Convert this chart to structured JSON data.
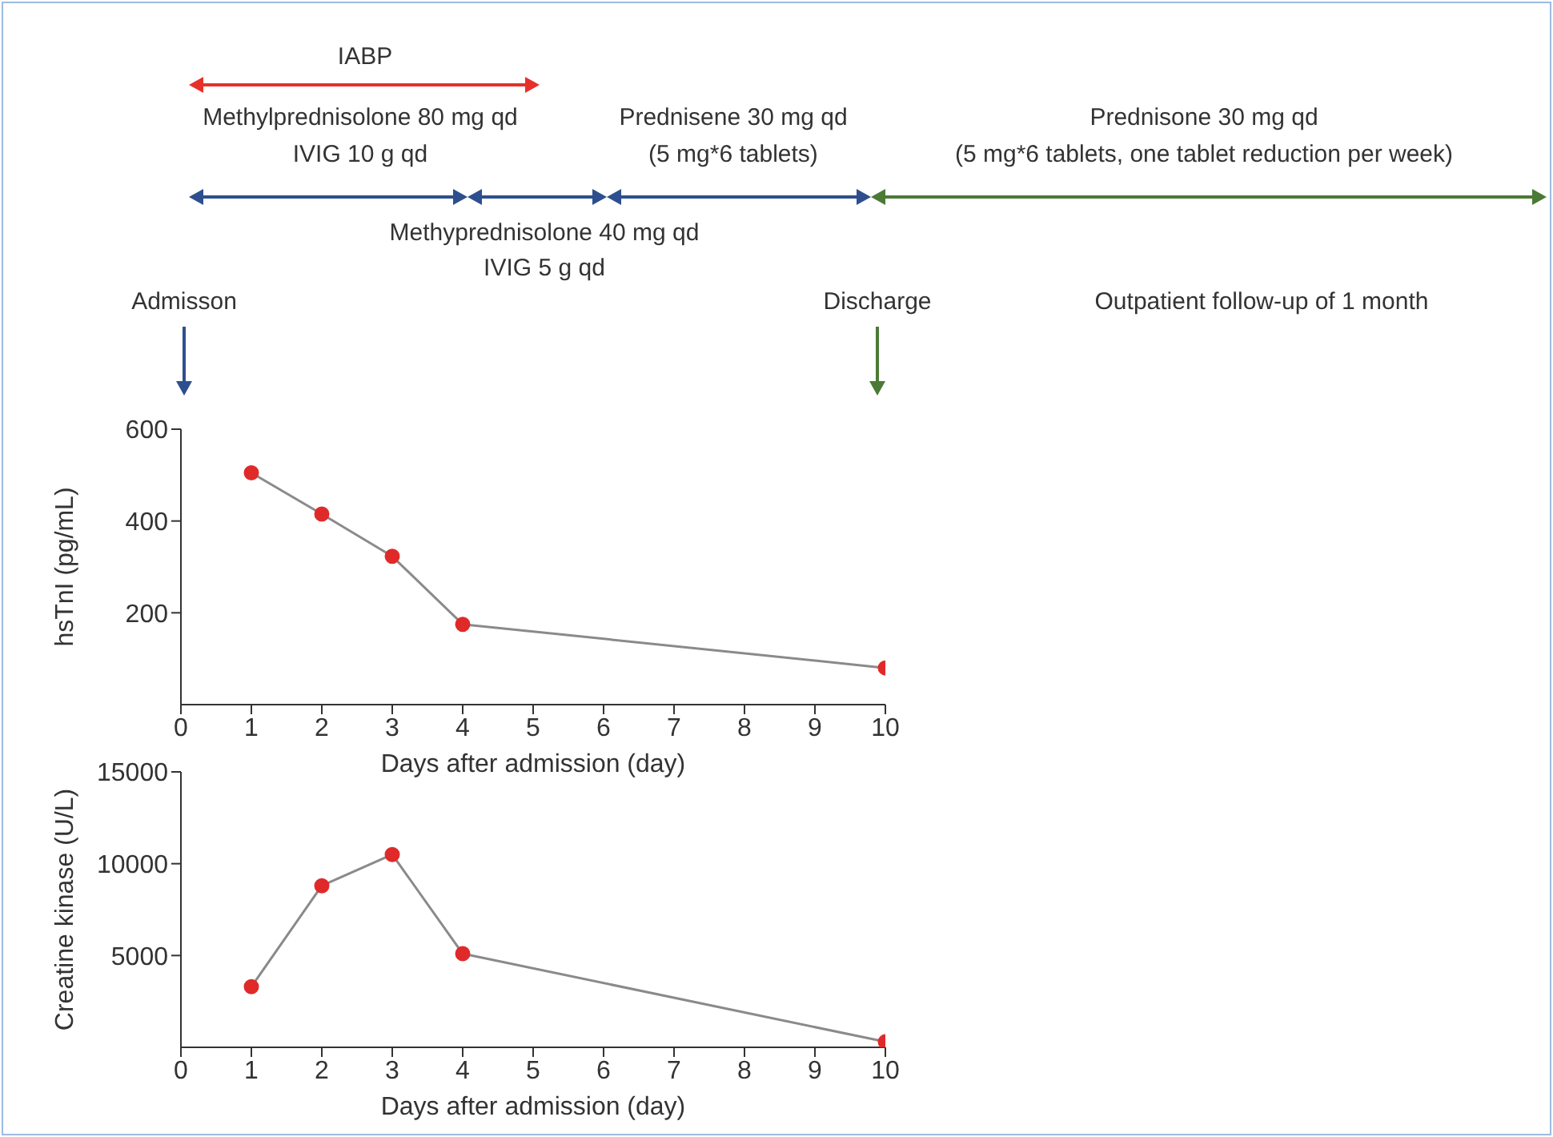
{
  "chart_data": [
    {
      "type": "other",
      "annotations": [
        "IABP",
        "Methylprednisolone 80 mg qd",
        "IVIG 10 g qd",
        "Prednisene 30 mg qd",
        "(5 mg*6 tablets)",
        "Prednisone 30 mg qd",
        "(5 mg*6 tablets, one tablet reduction per week)",
        "Methyprednisolone 40 mg qd",
        "IVIG 5 g qd",
        "Admisson",
        "Discharge",
        "Outpatient follow-up of 1 month"
      ]
    },
    {
      "type": "line",
      "xlabel": "Days after admission (day)",
      "ylabel": "hsTnI (pg/mL)",
      "x": [
        1,
        2,
        3,
        4,
        10
      ],
      "xlim": [
        0,
        10
      ],
      "xticks": [
        0,
        1,
        2,
        3,
        4,
        5,
        6,
        7,
        8,
        9,
        10
      ],
      "ylim": [
        0,
        600
      ],
      "yticks": [
        200,
        400,
        600
      ],
      "grid": false,
      "marker": "circle",
      "series": [
        {
          "color": "#e02a2a",
          "values": [
            505,
            415,
            323,
            175,
            80
          ]
        }
      ]
    },
    {
      "type": "line",
      "xlabel": "Days after admission (day)",
      "ylabel": "Creatine kinase (U/L)",
      "x": [
        1,
        2,
        3,
        4,
        10
      ],
      "xlim": [
        0,
        10
      ],
      "xticks": [
        0,
        1,
        2,
        3,
        4,
        5,
        6,
        7,
        8,
        9,
        10
      ],
      "ylim": [
        0,
        15000
      ],
      "yticks": [
        5000,
        10000,
        15000
      ],
      "grid": false,
      "marker": "circle",
      "series": [
        {
          "color": "#e02a2a",
          "values": [
            3300,
            8800,
            10500,
            5100,
            300
          ]
        }
      ]
    }
  ]
}
